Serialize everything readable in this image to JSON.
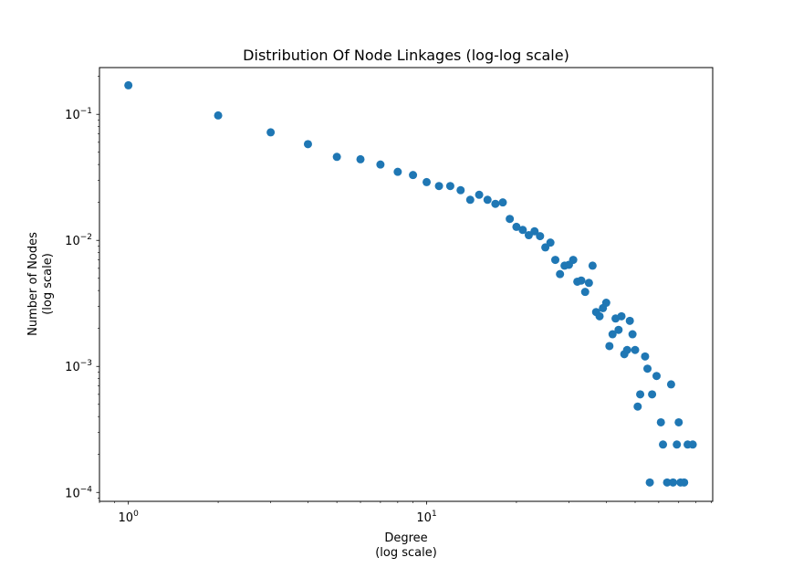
{
  "chart_data": {
    "type": "scatter",
    "title": "Distribution Of Node Linkages (log-log scale)",
    "xlabel": [
      "Degree",
      "(log scale)"
    ],
    "ylabel": [
      "Number of Nodes",
      "(log scale)"
    ],
    "xscale": "log",
    "yscale": "log",
    "xlim": [
      0.8,
      91
    ],
    "ylim": [
      8.5e-05,
      0.235
    ],
    "xticks": [
      {
        "base": "10",
        "exp": "0",
        "value": 1
      },
      {
        "base": "10",
        "exp": "1",
        "value": 10
      }
    ],
    "yticks": [
      {
        "base": "10",
        "exp": "−1",
        "value": 0.1
      },
      {
        "base": "10",
        "exp": "−2",
        "value": 0.01
      },
      {
        "base": "10",
        "exp": "−3",
        "value": 0.001
      },
      {
        "base": "10",
        "exp": "−4",
        "value": 0.0001
      }
    ],
    "grid": false,
    "marker_color": "#1f77b4",
    "points": [
      [
        1,
        0.17
      ],
      [
        2,
        0.098
      ],
      [
        3,
        0.072
      ],
      [
        4,
        0.058
      ],
      [
        5,
        0.046
      ],
      [
        6,
        0.044
      ],
      [
        7,
        0.04
      ],
      [
        8,
        0.035
      ],
      [
        9,
        0.033
      ],
      [
        10,
        0.029
      ],
      [
        11,
        0.027
      ],
      [
        12,
        0.027
      ],
      [
        13,
        0.025
      ],
      [
        14,
        0.021
      ],
      [
        15,
        0.023
      ],
      [
        16,
        0.021
      ],
      [
        17,
        0.0195
      ],
      [
        18,
        0.02
      ],
      [
        19,
        0.0148
      ],
      [
        20,
        0.0128
      ],
      [
        21,
        0.0121
      ],
      [
        22,
        0.011
      ],
      [
        23,
        0.0118
      ],
      [
        24,
        0.0108
      ],
      [
        25,
        0.0088
      ],
      [
        26,
        0.0096
      ],
      [
        27,
        0.007
      ],
      [
        28,
        0.0054
      ],
      [
        29,
        0.0063
      ],
      [
        30,
        0.0064
      ],
      [
        31,
        0.007
      ],
      [
        32,
        0.0047
      ],
      [
        33,
        0.0048
      ],
      [
        34,
        0.0039
      ],
      [
        35,
        0.0046
      ],
      [
        36,
        0.0063
      ],
      [
        37,
        0.0027
      ],
      [
        38,
        0.0025
      ],
      [
        39,
        0.0029
      ],
      [
        40,
        0.0032
      ],
      [
        41,
        0.00145
      ],
      [
        42,
        0.0018
      ],
      [
        43,
        0.0024
      ],
      [
        44,
        0.00195
      ],
      [
        45,
        0.0025
      ],
      [
        46,
        0.00125
      ],
      [
        47,
        0.00135
      ],
      [
        48,
        0.0023
      ],
      [
        49,
        0.0018
      ],
      [
        50,
        0.00135
      ],
      [
        51,
        0.00048
      ],
      [
        52,
        0.0006
      ],
      [
        54,
        0.0012
      ],
      [
        55,
        0.00096
      ],
      [
        56,
        0.00012
      ],
      [
        57,
        0.0006
      ],
      [
        59,
        0.00084
      ],
      [
        61,
        0.00036
      ],
      [
        62,
        0.00024
      ],
      [
        64,
        0.00012
      ],
      [
        66,
        0.00072
      ],
      [
        67,
        0.00012
      ],
      [
        69,
        0.00024
      ],
      [
        70,
        0.00036
      ],
      [
        71,
        0.00012
      ],
      [
        73,
        0.00012
      ],
      [
        75,
        0.00024
      ],
      [
        78,
        0.00024
      ]
    ]
  }
}
